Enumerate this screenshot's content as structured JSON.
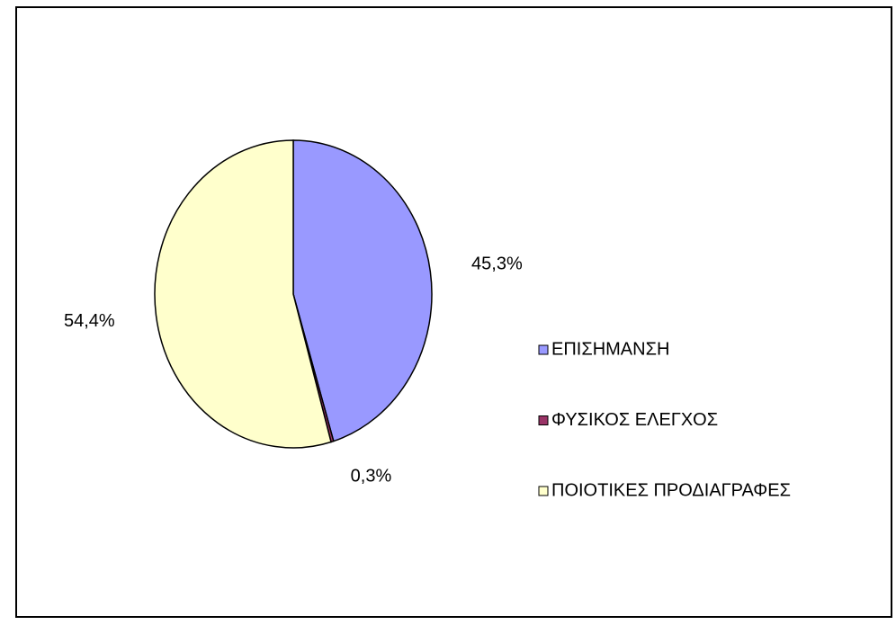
{
  "chart_data": {
    "type": "pie",
    "categories": [
      "ΕΠΙΣΗΜΑΝΣΗ",
      "ΦΥΣΙΚΟΣ ΕΛΕΓΧΟΣ",
      "ΠΟΙΟΤΙΚΕΣ ΠΡΟΔΙΑΓΡΑΦΕΣ"
    ],
    "values": [
      45.3,
      0.3,
      54.4
    ],
    "value_labels": [
      "45,3%",
      "0,3%",
      "54,4%"
    ],
    "colors": [
      "#9999ff",
      "#993366",
      "#ffffcc"
    ],
    "legend": "right"
  }
}
